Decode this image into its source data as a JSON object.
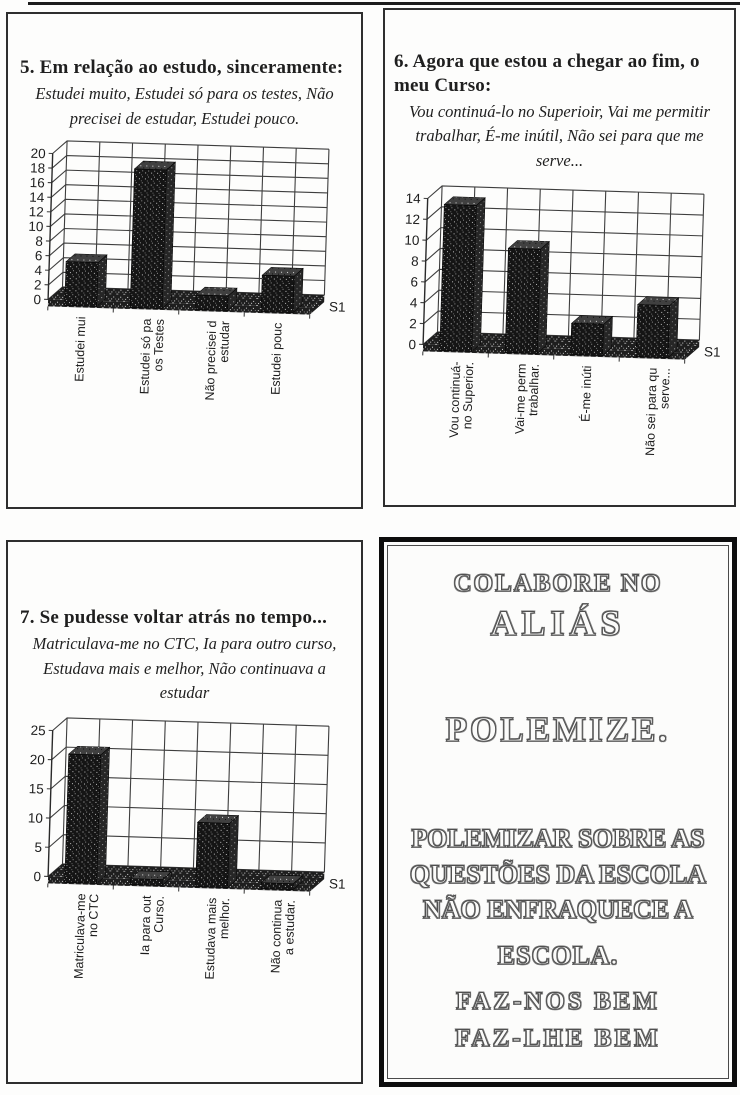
{
  "colors": {
    "ink": "#1f1f1f",
    "paper": "#fdfdfc"
  },
  "panels": {
    "q5": {
      "title": "5. Em relação ao estudo, sinceramente:",
      "subtitle": "Estudei muito, Estudei só para os testes, Não precisei de estudar, Estudei pouco."
    },
    "q6": {
      "title": "6. Agora que estou a chegar ao fim, o meu Curso:",
      "subtitle": "Vou continuá-lo no Superioir, Vai me permitir trabalhar, É-me inútil, Não sei para que me serve..."
    },
    "q7": {
      "title": "7. Se pudesse voltar atrás no tempo...",
      "subtitle": "Matriculava-me no CTC,  Ia para outro curso, Estudava mais e melhor, Não continuava a estudar"
    }
  },
  "poster": {
    "lines": [
      "COLABORE NO",
      "ALIÁS",
      "POLEMIZE.",
      "POLEMIZAR SOBRE AS",
      "QUESTÕES DA ESCOLA",
      "NÃO ENFRAQUECE A",
      "ESCOLA.",
      "FAZ-NOS BEM",
      "FAZ-LHE BEM"
    ]
  },
  "chart_data": [
    {
      "type": "bar",
      "variant": "3d-column",
      "title": "5. Em relação ao estudo, sinceramente:",
      "categories": [
        "Estudei muito",
        "Estudei só para os Testes",
        "Não precisei de estudar",
        "Estudei pouco"
      ],
      "category_axis_labels": [
        [
          "Estudei mui"
        ],
        [
          "Estudei só pa",
          "os Testes"
        ],
        [
          "Não precisei d",
          "estudar"
        ],
        [
          "Estudei pouc"
        ]
      ],
      "series": [
        {
          "name": "S1",
          "values": [
            6,
            19,
            2,
            5
          ]
        }
      ],
      "xlabel": "",
      "ylabel": "",
      "ylim": [
        0,
        20
      ],
      "ytick_step": 2,
      "grid": true,
      "legend": [
        "S1"
      ],
      "legend_position": "right"
    },
    {
      "type": "bar",
      "variant": "3d-column",
      "title": "6. Agora que estou a chegar ao fim, o meu Curso:",
      "categories": [
        "Vou continuá-lo no Superior.",
        "Vai-me permitir trabalhar.",
        "É-me inútil",
        "Não sei para que me serve..."
      ],
      "category_axis_labels": [
        [
          "Vou continuá-",
          "no Superior."
        ],
        [
          "Vai-me perm",
          "trabalhar."
        ],
        [
          "É-me inúti"
        ],
        [
          "Não sei para qu",
          "serve..."
        ]
      ],
      "series": [
        {
          "name": "S1",
          "values": [
            14,
            10,
            3,
            5
          ]
        }
      ],
      "xlabel": "",
      "ylabel": "",
      "ylim": [
        0,
        14
      ],
      "ytick_step": 2,
      "grid": true,
      "legend": [
        "S1"
      ],
      "legend_position": "right"
    },
    {
      "type": "bar",
      "variant": "3d-column",
      "title": "7. Se pudesse voltar atrás no tempo...",
      "categories": [
        "Matriculava-me no CTC",
        "Ia para outro Curso.",
        "Estudava mais e melhor.",
        "Não continuava a estudar."
      ],
      "category_axis_labels": [
        [
          "Matriculava-me",
          "no CTC"
        ],
        [
          "Ia para out",
          "Curso."
        ],
        [
          "Estudava mais",
          "melhor."
        ],
        [
          "Não continua",
          "a estudar."
        ]
      ],
      "series": [
        {
          "name": "S1",
          "values": [
            22,
            1,
            11,
            1
          ]
        }
      ],
      "xlabel": "",
      "ylabel": "",
      "ylim": [
        0,
        25
      ],
      "ytick_step": 5,
      "grid": true,
      "legend": [
        "S1"
      ],
      "legend_position": "right"
    }
  ]
}
